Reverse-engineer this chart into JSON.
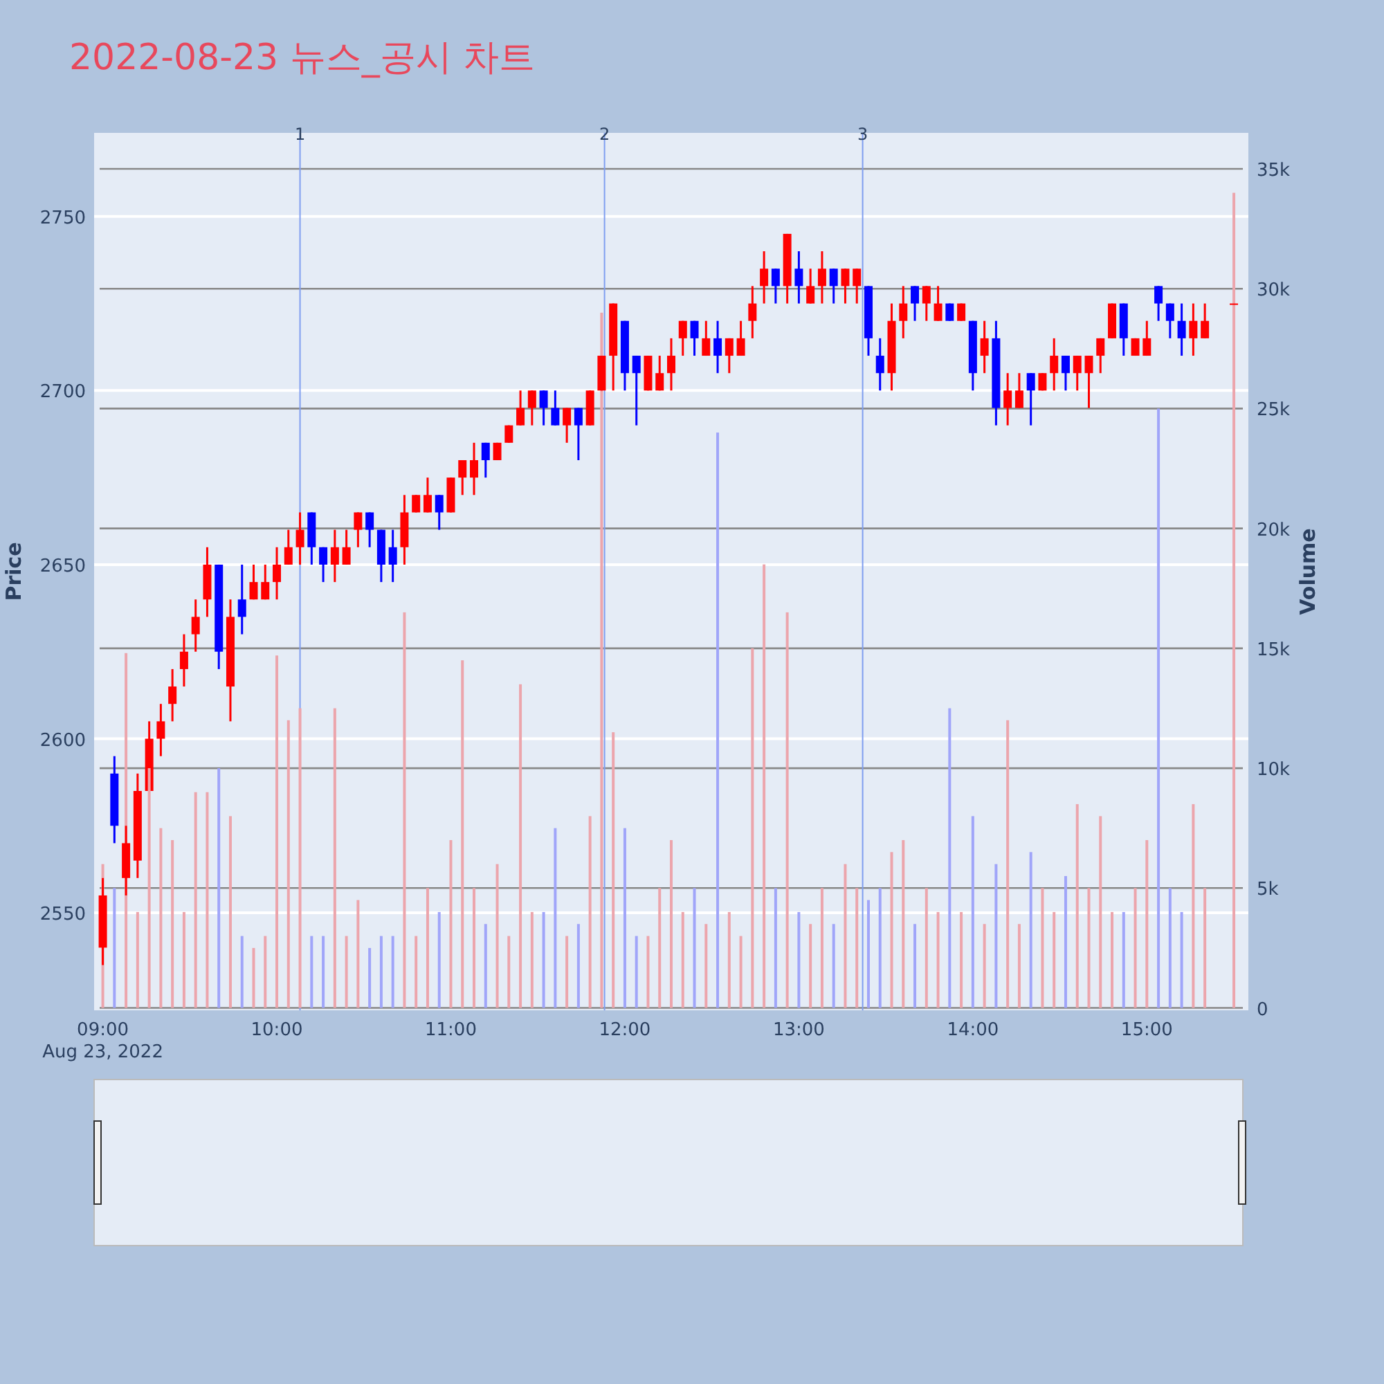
{
  "chart_data": {
    "type": "candlestick",
    "title": "2022-08-23 뉴스_공시 차트",
    "ylabel": "Price",
    "y2label": "Volume",
    "x": [
      "2022-08-23T09:00",
      "2022-08-23T09:04",
      "2022-08-23T09:08",
      "2022-08-23T09:12",
      "2022-08-23T09:16",
      "2022-08-23T09:20",
      "2022-08-23T09:24",
      "2022-08-23T09:28",
      "2022-08-23T09:32",
      "2022-08-23T09:36",
      "2022-08-23T09:40",
      "2022-08-23T09:44",
      "2022-08-23T09:48",
      "2022-08-23T09:52",
      "2022-08-23T09:56",
      "2022-08-23T10:00",
      "2022-08-23T10:04",
      "2022-08-23T10:08",
      "2022-08-23T10:12",
      "2022-08-23T10:16",
      "2022-08-23T10:20",
      "2022-08-23T10:24",
      "2022-08-23T10:28",
      "2022-08-23T10:32",
      "2022-08-23T10:36",
      "2022-08-23T10:40",
      "2022-08-23T10:44",
      "2022-08-23T10:48",
      "2022-08-23T10:52",
      "2022-08-23T10:56",
      "2022-08-23T11:00",
      "2022-08-23T11:04",
      "2022-08-23T11:08",
      "2022-08-23T11:12",
      "2022-08-23T11:16",
      "2022-08-23T11:20",
      "2022-08-23T11:24",
      "2022-08-23T11:28",
      "2022-08-23T11:32",
      "2022-08-23T11:36",
      "2022-08-23T11:40",
      "2022-08-23T11:44",
      "2022-08-23T11:48",
      "2022-08-23T11:52",
      "2022-08-23T11:56",
      "2022-08-23T12:00",
      "2022-08-23T12:04",
      "2022-08-23T12:08",
      "2022-08-23T12:12",
      "2022-08-23T12:16",
      "2022-08-23T12:20",
      "2022-08-23T12:24",
      "2022-08-23T12:28",
      "2022-08-23T12:32",
      "2022-08-23T12:36",
      "2022-08-23T12:40",
      "2022-08-23T12:44",
      "2022-08-23T12:48",
      "2022-08-23T12:52",
      "2022-08-23T12:56",
      "2022-08-23T13:00",
      "2022-08-23T13:04",
      "2022-08-23T13:08",
      "2022-08-23T13:12",
      "2022-08-23T13:16",
      "2022-08-23T13:20",
      "2022-08-23T13:24",
      "2022-08-23T13:28",
      "2022-08-23T13:32",
      "2022-08-23T13:36",
      "2022-08-23T13:40",
      "2022-08-23T13:44",
      "2022-08-23T13:48",
      "2022-08-23T13:52",
      "2022-08-23T13:56",
      "2022-08-23T14:00",
      "2022-08-23T14:04",
      "2022-08-23T14:08",
      "2022-08-23T14:12",
      "2022-08-23T14:16",
      "2022-08-23T14:20",
      "2022-08-23T14:24",
      "2022-08-23T14:28",
      "2022-08-23T14:32",
      "2022-08-23T14:36",
      "2022-08-23T14:40",
      "2022-08-23T14:44",
      "2022-08-23T14:48",
      "2022-08-23T14:52",
      "2022-08-23T14:56",
      "2022-08-23T15:00",
      "2022-08-23T15:04",
      "2022-08-23T15:08",
      "2022-08-23T15:12",
      "2022-08-23T15:16",
      "2022-08-23T15:20",
      "2022-08-23T15:30"
    ],
    "ohlc": [
      [
        2540,
        2560,
        2535,
        2555
      ],
      [
        2590,
        2595,
        2570,
        2575
      ],
      [
        2560,
        2575,
        2555,
        2570
      ],
      [
        2565,
        2590,
        2560,
        2585
      ],
      [
        2585,
        2605,
        2585,
        2600
      ],
      [
        2600,
        2610,
        2595,
        2605
      ],
      [
        2610,
        2620,
        2605,
        2615
      ],
      [
        2620,
        2630,
        2615,
        2625
      ],
      [
        2630,
        2640,
        2625,
        2635
      ],
      [
        2640,
        2655,
        2635,
        2650
      ],
      [
        2650,
        2650,
        2620,
        2625
      ],
      [
        2615,
        2640,
        2605,
        2635
      ],
      [
        2640,
        2650,
        2630,
        2635
      ],
      [
        2640,
        2650,
        2640,
        2645
      ],
      [
        2640,
        2650,
        2640,
        2645
      ],
      [
        2645,
        2655,
        2640,
        2650
      ],
      [
        2650,
        2660,
        2650,
        2655
      ],
      [
        2655,
        2665,
        2650,
        2660
      ],
      [
        2665,
        2665,
        2650,
        2655
      ],
      [
        2655,
        2655,
        2645,
        2650
      ],
      [
        2650,
        2660,
        2645,
        2655
      ],
      [
        2650,
        2660,
        2650,
        2655
      ],
      [
        2660,
        2665,
        2655,
        2665
      ],
      [
        2665,
        2665,
        2655,
        2660
      ],
      [
        2660,
        2660,
        2645,
        2650
      ],
      [
        2655,
        2660,
        2645,
        2650
      ],
      [
        2655,
        2670,
        2650,
        2665
      ],
      [
        2665,
        2670,
        2665,
        2670
      ],
      [
        2665,
        2675,
        2665,
        2670
      ],
      [
        2670,
        2670,
        2660,
        2665
      ],
      [
        2665,
        2675,
        2665,
        2675
      ],
      [
        2675,
        2680,
        2670,
        2680
      ],
      [
        2675,
        2685,
        2670,
        2680
      ],
      [
        2685,
        2685,
        2675,
        2680
      ],
      [
        2680,
        2685,
        2680,
        2685
      ],
      [
        2685,
        2690,
        2685,
        2690
      ],
      [
        2690,
        2700,
        2690,
        2695
      ],
      [
        2695,
        2700,
        2690,
        2700
      ],
      [
        2700,
        2700,
        2690,
        2695
      ],
      [
        2695,
        2700,
        2690,
        2690
      ],
      [
        2690,
        2695,
        2685,
        2695
      ],
      [
        2695,
        2695,
        2680,
        2690
      ],
      [
        2690,
        2700,
        2690,
        2700
      ],
      [
        2700,
        2710,
        2700,
        2710
      ],
      [
        2710,
        2725,
        2700,
        2725
      ],
      [
        2720,
        2720,
        2700,
        2705
      ],
      [
        2710,
        2710,
        2690,
        2705
      ],
      [
        2700,
        2710,
        2700,
        2710
      ],
      [
        2700,
        2710,
        2700,
        2705
      ],
      [
        2705,
        2715,
        2700,
        2710
      ],
      [
        2715,
        2720,
        2710,
        2720
      ],
      [
        2720,
        2720,
        2710,
        2715
      ],
      [
        2710,
        2720,
        2710,
        2715
      ],
      [
        2715,
        2720,
        2705,
        2710
      ],
      [
        2710,
        2715,
        2705,
        2715
      ],
      [
        2710,
        2720,
        2710,
        2715
      ],
      [
        2720,
        2730,
        2715,
        2725
      ],
      [
        2730,
        2740,
        2725,
        2735
      ],
      [
        2735,
        2735,
        2725,
        2730
      ],
      [
        2730,
        2745,
        2725,
        2745
      ],
      [
        2735,
        2740,
        2725,
        2730
      ],
      [
        2725,
        2735,
        2725,
        2730
      ],
      [
        2730,
        2740,
        2725,
        2735
      ],
      [
        2735,
        2735,
        2725,
        2730
      ],
      [
        2730,
        2735,
        2725,
        2735
      ],
      [
        2730,
        2735,
        2725,
        2735
      ],
      [
        2730,
        2730,
        2710,
        2715
      ],
      [
        2710,
        2715,
        2700,
        2705
      ],
      [
        2705,
        2725,
        2700,
        2720
      ],
      [
        2720,
        2730,
        2715,
        2725
      ],
      [
        2730,
        2730,
        2720,
        2725
      ],
      [
        2725,
        2730,
        2720,
        2730
      ],
      [
        2720,
        2730,
        2720,
        2725
      ],
      [
        2725,
        2725,
        2720,
        2720
      ],
      [
        2720,
        2725,
        2720,
        2725
      ],
      [
        2720,
        2720,
        2700,
        2705
      ],
      [
        2710,
        2720,
        2705,
        2715
      ],
      [
        2715,
        2720,
        2690,
        2695
      ],
      [
        2695,
        2705,
        2690,
        2700
      ],
      [
        2695,
        2705,
        2695,
        2700
      ],
      [
        2705,
        2705,
        2690,
        2700
      ],
      [
        2700,
        2705,
        2700,
        2705
      ],
      [
        2705,
        2715,
        2700,
        2710
      ],
      [
        2710,
        2710,
        2700,
        2705
      ],
      [
        2705,
        2710,
        2700,
        2710
      ],
      [
        2705,
        2710,
        2695,
        2710
      ],
      [
        2710,
        2715,
        2705,
        2715
      ],
      [
        2715,
        2725,
        2715,
        2725
      ],
      [
        2725,
        2725,
        2710,
        2715
      ],
      [
        2710,
        2715,
        2710,
        2715
      ],
      [
        2710,
        2720,
        2710,
        2715
      ],
      [
        2730,
        2730,
        2720,
        2725
      ],
      [
        2725,
        2725,
        2715,
        2720
      ],
      [
        2720,
        2725,
        2710,
        2715
      ],
      [
        2715,
        2725,
        2710,
        2720
      ],
      [
        2715,
        2725,
        2715,
        2720
      ],
      [
        2725,
        2725,
        2725,
        2725
      ]
    ],
    "colors": [
      "#ff0000",
      "#0000ff",
      "#ff0000",
      "#ff0000",
      "#ff0000",
      "#ff0000",
      "#ff0000",
      "#ff0000",
      "#ff0000",
      "#ff0000",
      "#0000ff",
      "#ff0000",
      "#0000ff",
      "#ff0000",
      "#ff0000",
      "#ff0000",
      "#ff0000",
      "#ff0000",
      "#0000ff",
      "#0000ff",
      "#ff0000",
      "#ff0000",
      "#ff0000",
      "#0000ff",
      "#0000ff",
      "#0000ff",
      "#ff0000",
      "#ff0000",
      "#ff0000",
      "#0000ff",
      "#ff0000",
      "#ff0000",
      "#ff0000",
      "#0000ff",
      "#ff0000",
      "#ff0000",
      "#ff0000",
      "#ff0000",
      "#0000ff",
      "#0000ff",
      "#ff0000",
      "#0000ff",
      "#ff0000",
      "#ff0000",
      "#ff0000",
      "#0000ff",
      "#0000ff",
      "#ff0000",
      "#ff0000",
      "#ff0000",
      "#ff0000",
      "#0000ff",
      "#ff0000",
      "#0000ff",
      "#ff0000",
      "#ff0000",
      "#ff0000",
      "#ff0000",
      "#0000ff",
      "#ff0000",
      "#0000ff",
      "#ff0000",
      "#ff0000",
      "#0000ff",
      "#ff0000",
      "#ff0000",
      "#0000ff",
      "#0000ff",
      "#ff0000",
      "#ff0000",
      "#0000ff",
      "#ff0000",
      "#ff0000",
      "#0000ff",
      "#ff0000",
      "#0000ff",
      "#ff0000",
      "#0000ff",
      "#ff0000",
      "#ff0000",
      "#0000ff",
      "#ff0000",
      "#ff0000",
      "#0000ff",
      "#ff0000",
      "#ff0000",
      "#ff0000",
      "#ff0000",
      "#0000ff",
      "#ff0000",
      "#ff0000",
      "#0000ff",
      "#0000ff",
      "#0000ff",
      "#ff0000",
      "#ff0000",
      "#ff0000"
    ],
    "series": [
      {
        "type": "bar",
        "axis": "y2",
        "values": [
          6000,
          5000,
          14800,
          4000,
          10000,
          7500,
          7000,
          4000,
          9000,
          9000,
          10000,
          8000,
          3000,
          2500,
          3000,
          14700,
          12000,
          12500,
          3000,
          3000,
          12500,
          3000,
          4500,
          2500,
          3000,
          3000,
          16500,
          3000,
          5000,
          4000,
          7000,
          14500,
          5000,
          3500,
          6000,
          3000,
          13500,
          4000,
          4000,
          7500,
          3000,
          3500,
          8000,
          29000,
          11500,
          7500,
          3000,
          3000,
          5000,
          7000,
          4000,
          5000,
          3500,
          24000,
          4000,
          3000,
          15000,
          18500,
          5000,
          16500,
          4000,
          3500,
          5000,
          3500,
          6000,
          5000,
          4500,
          5000,
          6500,
          7000,
          3500,
          5000,
          4000,
          12500,
          4000,
          8000,
          3500,
          6000,
          12000,
          3500,
          6500,
          5000,
          4000,
          5500,
          8500,
          5000,
          8000,
          4000,
          4000,
          5000,
          7000,
          25000,
          5000,
          4000,
          8500,
          5000,
          34000
        ],
        "colors": [
          "#eca5ac",
          "#a0a5f9",
          "#eca5ac",
          "#eca5ac",
          "#eca5ac",
          "#eca5ac",
          "#eca5ac",
          "#eca5ac",
          "#eca5ac",
          "#eca5ac",
          "#a0a5f9",
          "#eca5ac",
          "#a0a5f9",
          "#eca5ac",
          "#eca5ac",
          "#eca5ac",
          "#eca5ac",
          "#eca5ac",
          "#a0a5f9",
          "#a0a5f9",
          "#eca5ac",
          "#eca5ac",
          "#eca5ac",
          "#a0a5f9",
          "#a0a5f9",
          "#a0a5f9",
          "#eca5ac",
          "#eca5ac",
          "#eca5ac",
          "#a0a5f9",
          "#eca5ac",
          "#eca5ac",
          "#eca5ac",
          "#a0a5f9",
          "#eca5ac",
          "#eca5ac",
          "#eca5ac",
          "#eca5ac",
          "#a0a5f9",
          "#a0a5f9",
          "#eca5ac",
          "#a0a5f9",
          "#eca5ac",
          "#eca5ac",
          "#eca5ac",
          "#a0a5f9",
          "#a0a5f9",
          "#eca5ac",
          "#eca5ac",
          "#eca5ac",
          "#eca5ac",
          "#a0a5f9",
          "#eca5ac",
          "#a0a5f9",
          "#eca5ac",
          "#eca5ac",
          "#eca5ac",
          "#eca5ac",
          "#a0a5f9",
          "#eca5ac",
          "#a0a5f9",
          "#eca5ac",
          "#eca5ac",
          "#a0a5f9",
          "#eca5ac",
          "#eca5ac",
          "#a0a5f9",
          "#a0a5f9",
          "#eca5ac",
          "#eca5ac",
          "#a0a5f9",
          "#eca5ac",
          "#eca5ac",
          "#a0a5f9",
          "#eca5ac",
          "#a0a5f9",
          "#eca5ac",
          "#a0a5f9",
          "#eca5ac",
          "#eca5ac",
          "#a0a5f9",
          "#eca5ac",
          "#eca5ac",
          "#a0a5f9",
          "#eca5ac",
          "#eca5ac",
          "#eca5ac",
          "#eca5ac",
          "#a0a5f9",
          "#eca5ac",
          "#eca5ac",
          "#a0a5f9",
          "#a0a5f9",
          "#a0a5f9",
          "#eca5ac",
          "#eca5ac",
          "#eca5ac"
        ]
      }
    ],
    "xlim": [
      "2022-08-23T08:57",
      "2022-08-23T15:35"
    ],
    "xticks": [
      {
        "value": "2022-08-23T09:00",
        "label": "09:00"
      },
      {
        "value": "2022-08-23T10:00",
        "label": "10:00"
      },
      {
        "value": "2022-08-23T11:00",
        "label": "11:00"
      },
      {
        "value": "2022-08-23T12:00",
        "label": "12:00"
      },
      {
        "value": "2022-08-23T13:00",
        "label": "13:00"
      },
      {
        "value": "2022-08-23T14:00",
        "label": "14:00"
      },
      {
        "value": "2022-08-23T15:00",
        "label": "15:00"
      }
    ],
    "ylim": [
      2522,
      2774
    ],
    "yticks": [
      2550,
      2600,
      2650,
      2700,
      2750
    ],
    "y2lim": [
      -100,
      36500
    ],
    "y2ticks": [
      0,
      {
        "value": 5000,
        "label": "5k"
      },
      {
        "value": 10000,
        "label": "10k"
      },
      {
        "value": 15000,
        "label": "15k"
      },
      {
        "value": 20000,
        "label": "20k"
      },
      {
        "value": 25000,
        "label": "25k"
      },
      {
        "value": 30000,
        "label": "30k"
      },
      {
        "value": 35000,
        "label": "35k"
      }
    ],
    "grid": "y",
    "ref_lines": [
      {
        "axis": "x",
        "value": "2022-08-23T10:08",
        "label": "1",
        "color": "#7f9ef0"
      },
      {
        "axis": "x",
        "value": "2022-08-23T11:53",
        "label": "2",
        "color": "#7f9ef0"
      },
      {
        "axis": "x",
        "value": "2022-08-23T13:22",
        "label": "3",
        "color": "#7f9ef0"
      }
    ],
    "annotations": [
      "Aug 23, 2022"
    ]
  }
}
